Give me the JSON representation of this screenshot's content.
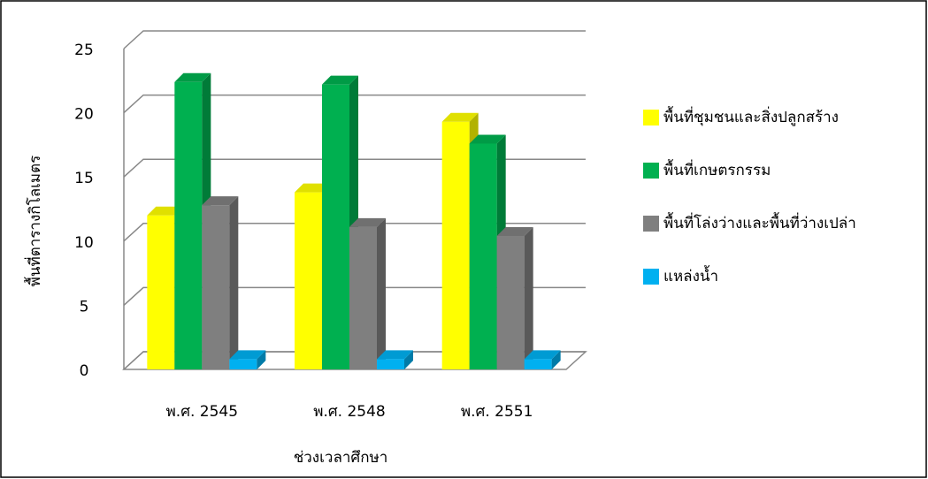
{
  "chart_data": {
    "type": "bar3d",
    "categories": [
      "พ.ศ. 2545",
      "พ.ศ. 2548",
      "พ.ศ. 2551"
    ],
    "x_label": "ช่วงเวลาศึกษา",
    "y_label": "พื้นที่ตารางกิโลเมตร",
    "ylim": [
      0,
      25
    ],
    "yticks": [
      0,
      5,
      10,
      15,
      20,
      25
    ],
    "grid": true,
    "legend": "right",
    "series": [
      {
        "name": "พื้นที่ชุมชนและสิ่งปลูกสร้าง",
        "color": "#ffff00",
        "values": [
          12,
          13.8,
          19.3
        ]
      },
      {
        "name": "พื้นที่เกษตรกรรม",
        "color": "#00b050",
        "values": [
          22.4,
          22.2,
          17.6
        ]
      },
      {
        "name": "พื้นที่โล่งว่างและพื้นที่ว่างเปล่า",
        "color": "#7f7f7f",
        "values": [
          12.8,
          11.1,
          10.4
        ]
      },
      {
        "name": "แหล่งน้ำ",
        "color": "#00b0f0",
        "values": [
          0.8,
          0.8,
          0.8
        ]
      }
    ]
  }
}
